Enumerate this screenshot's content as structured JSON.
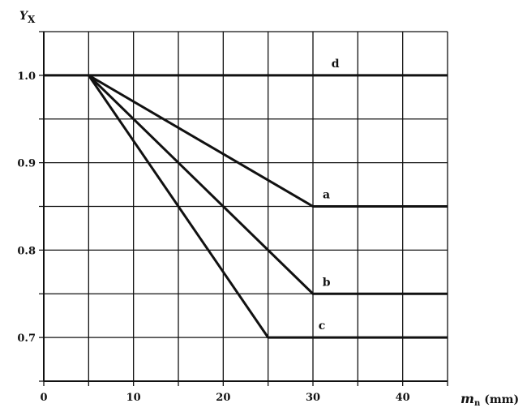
{
  "chart_data": {
    "type": "line",
    "title": "",
    "xlabel": "m",
    "xlabel_sub": "n",
    "xlabel_unit": "(mm)",
    "ylabel": "Y",
    "ylabel_sub": "X",
    "xlim": [
      0,
      45
    ],
    "ylim": [
      0.65,
      1.05
    ],
    "xticks": [
      0,
      10,
      20,
      30,
      40
    ],
    "xtick_labels": [
      "0",
      "10",
      "20",
      "30",
      "40"
    ],
    "yticks": [
      0.7,
      0.8,
      0.9,
      1.0
    ],
    "ytick_labels": [
      "0.7",
      "0.8",
      "0.9",
      "1.0"
    ],
    "grid": true,
    "grid_x_step": 5,
    "grid_y_step": 0.05,
    "line_color": "#111111",
    "series": [
      {
        "name": "d",
        "x": [
          0,
          45
        ],
        "y": [
          1.0,
          1.0
        ]
      },
      {
        "name": "a",
        "x": [
          5,
          30,
          45
        ],
        "y": [
          1.0,
          0.85,
          0.85
        ]
      },
      {
        "name": "b",
        "x": [
          5,
          30,
          45
        ],
        "y": [
          1.0,
          0.75,
          0.75
        ]
      },
      {
        "name": "c",
        "x": [
          5,
          25,
          45
        ],
        "y": [
          1.0,
          0.7,
          0.7
        ]
      }
    ]
  }
}
